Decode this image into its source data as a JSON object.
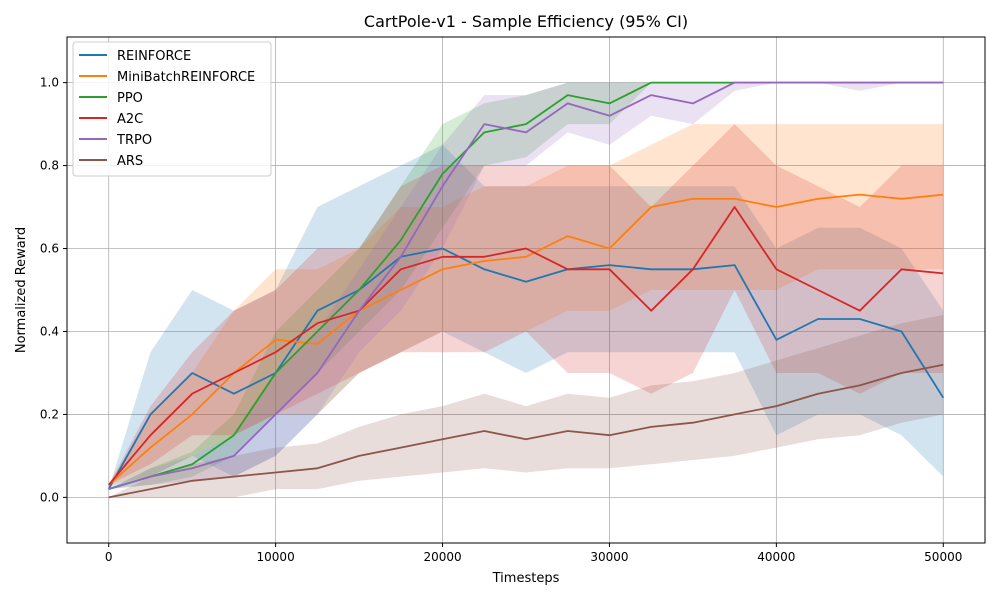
{
  "chart_data": {
    "type": "line",
    "title": "CartPole-v1 - Sample Efficiency (95% CI)",
    "xlabel": "Timesteps",
    "ylabel": "Normalized Reward",
    "xlim": [
      -2500,
      52500
    ],
    "ylim": [
      -0.11,
      1.11
    ],
    "xticks": [
      0,
      10000,
      20000,
      30000,
      40000,
      50000
    ],
    "yticks": [
      0.0,
      0.2,
      0.4,
      0.6,
      0.8,
      1.0
    ],
    "grid": true,
    "legend_position": "top-left",
    "x": [
      0,
      2500,
      5000,
      7500,
      10000,
      12500,
      15000,
      17500,
      20000,
      22500,
      25000,
      27500,
      30000,
      32500,
      35000,
      37500,
      40000,
      42500,
      45000,
      47500,
      50000
    ],
    "series": [
      {
        "name": "REINFORCE",
        "color": "#1f77b4",
        "values": [
          0.02,
          0.2,
          0.3,
          0.25,
          0.3,
          0.45,
          0.5,
          0.58,
          0.6,
          0.55,
          0.52,
          0.55,
          0.56,
          0.55,
          0.55,
          0.56,
          0.38,
          0.43,
          0.43,
          0.4,
          0.24
        ],
        "lower": [
          0.02,
          0.05,
          0.1,
          0.05,
          0.1,
          0.2,
          0.3,
          0.35,
          0.4,
          0.35,
          0.3,
          0.35,
          0.35,
          0.35,
          0.35,
          0.35,
          0.15,
          0.2,
          0.2,
          0.15,
          0.05
        ],
        "upper": [
          0.02,
          0.35,
          0.5,
          0.45,
          0.5,
          0.7,
          0.75,
          0.8,
          0.85,
          0.75,
          0.75,
          0.75,
          0.75,
          0.75,
          0.75,
          0.75,
          0.6,
          0.65,
          0.65,
          0.6,
          0.45
        ]
      },
      {
        "name": "MiniBatchREINFORCE",
        "color": "#ff7f0e",
        "values": [
          0.03,
          0.12,
          0.2,
          0.3,
          0.38,
          0.37,
          0.45,
          0.5,
          0.55,
          0.57,
          0.58,
          0.63,
          0.6,
          0.7,
          0.72,
          0.72,
          0.7,
          0.72,
          0.73,
          0.72,
          0.73
        ],
        "lower": [
          0.03,
          0.05,
          0.1,
          0.15,
          0.2,
          0.2,
          0.3,
          0.35,
          0.4,
          0.4,
          0.4,
          0.45,
          0.45,
          0.5,
          0.5,
          0.5,
          0.5,
          0.55,
          0.55,
          0.55,
          0.55
        ],
        "upper": [
          0.03,
          0.2,
          0.3,
          0.45,
          0.55,
          0.55,
          0.6,
          0.7,
          0.7,
          0.75,
          0.75,
          0.8,
          0.8,
          0.85,
          0.9,
          0.9,
          0.9,
          0.9,
          0.9,
          0.9,
          0.9
        ]
      },
      {
        "name": "PPO",
        "color": "#2ca02c",
        "values": [
          0.02,
          0.05,
          0.08,
          0.15,
          0.3,
          0.4,
          0.5,
          0.62,
          0.78,
          0.88,
          0.9,
          0.97,
          0.95,
          1.0,
          1.0,
          1.0,
          1.0,
          1.0,
          1.0,
          1.0,
          1.0
        ],
        "lower": [
          0.02,
          0.03,
          0.05,
          0.1,
          0.2,
          0.3,
          0.4,
          0.5,
          0.65,
          0.8,
          0.82,
          0.9,
          0.9,
          1.0,
          1.0,
          1.0,
          1.0,
          1.0,
          1.0,
          1.0,
          1.0
        ],
        "upper": [
          0.02,
          0.07,
          0.11,
          0.2,
          0.4,
          0.5,
          0.6,
          0.75,
          0.9,
          0.95,
          0.97,
          1.0,
          1.0,
          1.0,
          1.0,
          1.0,
          1.0,
          1.0,
          1.0,
          1.0,
          1.0
        ]
      },
      {
        "name": "A2C",
        "color": "#d62728",
        "values": [
          0.03,
          0.15,
          0.25,
          0.3,
          0.35,
          0.42,
          0.45,
          0.55,
          0.58,
          0.58,
          0.6,
          0.55,
          0.55,
          0.45,
          0.55,
          0.7,
          0.55,
          0.5,
          0.45,
          0.55,
          0.54
        ],
        "lower": [
          0.03,
          0.08,
          0.15,
          0.15,
          0.2,
          0.25,
          0.3,
          0.35,
          0.35,
          0.35,
          0.4,
          0.3,
          0.3,
          0.25,
          0.3,
          0.5,
          0.3,
          0.3,
          0.25,
          0.3,
          0.3
        ],
        "upper": [
          0.03,
          0.22,
          0.35,
          0.45,
          0.5,
          0.6,
          0.6,
          0.75,
          0.8,
          0.8,
          0.8,
          0.8,
          0.8,
          0.7,
          0.8,
          0.9,
          0.8,
          0.75,
          0.7,
          0.8,
          0.8
        ]
      },
      {
        "name": "TRPO",
        "color": "#9467bd",
        "values": [
          0.02,
          0.05,
          0.07,
          0.1,
          0.2,
          0.3,
          0.45,
          0.58,
          0.75,
          0.9,
          0.88,
          0.95,
          0.92,
          0.97,
          0.95,
          1.0,
          1.0,
          1.0,
          1.0,
          1.0,
          1.0
        ],
        "lower": [
          0.02,
          0.03,
          0.04,
          0.05,
          0.1,
          0.2,
          0.35,
          0.45,
          0.6,
          0.8,
          0.8,
          0.88,
          0.85,
          0.92,
          0.9,
          0.98,
          1.0,
          1.0,
          0.98,
          1.0,
          1.0
        ],
        "upper": [
          0.02,
          0.07,
          0.1,
          0.15,
          0.3,
          0.4,
          0.55,
          0.7,
          0.85,
          0.97,
          0.97,
          1.0,
          1.0,
          1.0,
          1.0,
          1.0,
          1.0,
          1.0,
          1.0,
          1.0,
          1.0
        ]
      },
      {
        "name": "ARS",
        "color": "#8c564b",
        "values": [
          0.0,
          0.02,
          0.04,
          0.05,
          0.06,
          0.07,
          0.1,
          0.12,
          0.14,
          0.16,
          0.14,
          0.16,
          0.15,
          0.17,
          0.18,
          0.2,
          0.22,
          0.25,
          0.27,
          0.3,
          0.32
        ],
        "lower": [
          0.0,
          0.0,
          0.0,
          0.0,
          0.02,
          0.02,
          0.04,
          0.05,
          0.06,
          0.07,
          0.06,
          0.07,
          0.07,
          0.08,
          0.09,
          0.1,
          0.12,
          0.14,
          0.15,
          0.18,
          0.2
        ],
        "upper": [
          0.0,
          0.05,
          0.08,
          0.1,
          0.12,
          0.13,
          0.17,
          0.2,
          0.22,
          0.25,
          0.22,
          0.25,
          0.24,
          0.27,
          0.28,
          0.3,
          0.33,
          0.36,
          0.39,
          0.42,
          0.44
        ]
      }
    ]
  }
}
